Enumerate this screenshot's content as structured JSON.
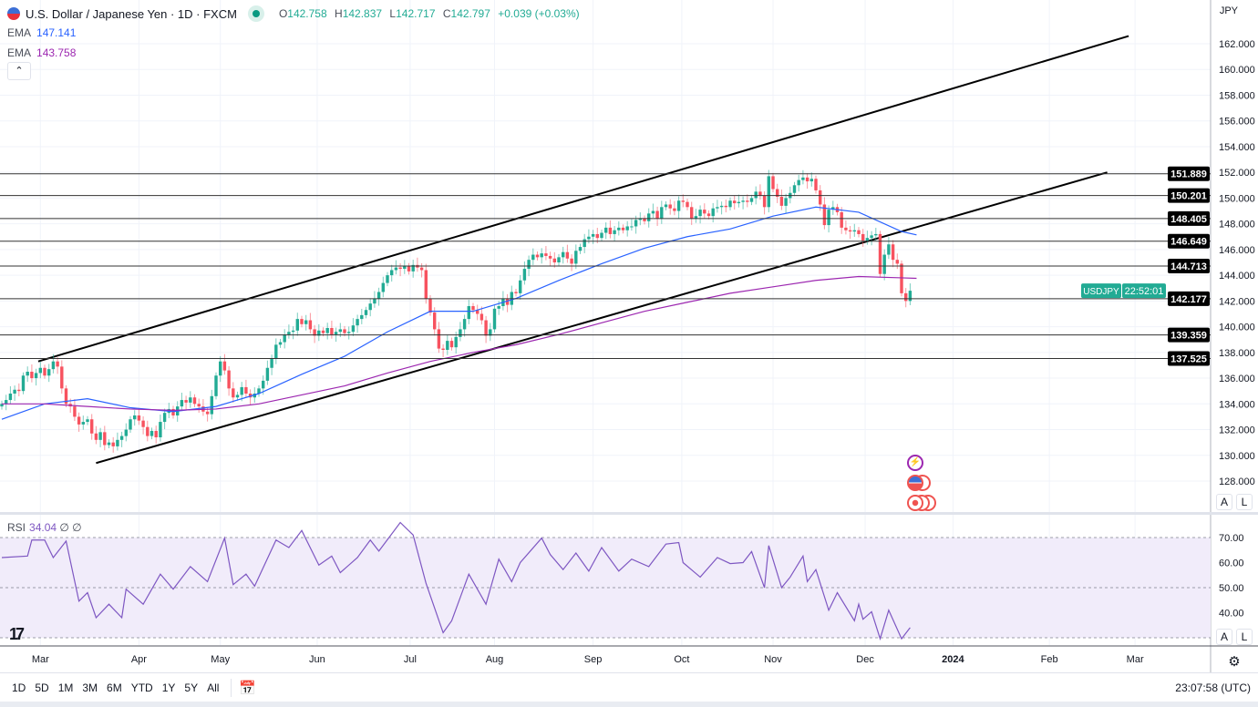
{
  "header": {
    "title": "U.S. Dollar / Japanese Yen · 1D · FXCM",
    "ohlc": {
      "o_label": "O",
      "o": "142.758",
      "h_label": "H",
      "h": "142.837",
      "l_label": "L",
      "l": "142.717",
      "c_label": "C",
      "c": "142.797",
      "change": "+0.039 (+0.03%)"
    },
    "ema1_label": "EMA",
    "ema1_value": "147.141",
    "ema2_label": "EMA",
    "ema2_value": "143.758",
    "collapse_icon": "chevron-up"
  },
  "axis": {
    "currency": "JPY",
    "symbol_tag": "USDJPY",
    "countdown": "22:52:01",
    "auto_label": "A",
    "log_label": "L"
  },
  "rsi_legend": {
    "label": "RSI",
    "value": "34.04",
    "extra": "∅ ∅"
  },
  "toolbar": {
    "ranges": [
      "1D",
      "5D",
      "1M",
      "3M",
      "6M",
      "YTD",
      "1Y",
      "5Y",
      "All"
    ],
    "calendar_icon": "calendar-icon",
    "clock": "23:07:58 (UTC)"
  },
  "colors": {
    "up": "#22ab94",
    "down": "#f7525f",
    "ema_fast": "#2962ff",
    "ema_slow": "#9c27b0",
    "rsi": "#7e57c2",
    "rsi_band": "#f1ecfa"
  },
  "chart_data": {
    "type": "candlestick",
    "symbol": "USDJPY",
    "interval": "1D",
    "ylim": [
      127,
      163.5
    ],
    "y_ticks": [
      128,
      130,
      132,
      134,
      136,
      138,
      140,
      142,
      144,
      146,
      148,
      150,
      152,
      154,
      156,
      158,
      160,
      162
    ],
    "x_ticks": [
      {
        "label": "Mar",
        "bar": 9
      },
      {
        "label": "Apr",
        "bar": 32
      },
      {
        "label": "May",
        "bar": 51
      },
      {
        "label": "Jun",
        "bar": 73.6
      },
      {
        "label": "Jul",
        "bar": 95.3
      },
      {
        "label": "Aug",
        "bar": 115
      },
      {
        "label": "Sep",
        "bar": 138
      },
      {
        "label": "Oct",
        "bar": 158.7
      },
      {
        "label": "Nov",
        "bar": 180
      },
      {
        "label": "Dec",
        "bar": 201.5
      },
      {
        "label": "2024",
        "bar": 222
      },
      {
        "label": "Feb",
        "bar": 244.5
      },
      {
        "label": "Mar",
        "bar": 264.5
      }
    ],
    "closes": [
      134.0,
      134.3,
      134.8,
      135.1,
      135.0,
      136.2,
      136.5,
      136.0,
      136.4,
      136.8,
      136.2,
      136.7,
      137.3,
      136.9,
      135.2,
      134.0,
      133.8,
      133.0,
      132.4,
      132.6,
      132.8,
      131.7,
      131.2,
      131.8,
      130.8,
      131.0,
      130.7,
      131.2,
      131.5,
      132.0,
      132.8,
      133.1,
      132.7,
      132.2,
      131.5,
      131.9,
      131.4,
      132.6,
      133.3,
      133.6,
      133.1,
      133.8,
      134.3,
      134.1,
      134.5,
      134.0,
      133.8,
      133.4,
      133.2,
      134.6,
      136.2,
      137.3,
      136.6,
      135.2,
      134.5,
      134.7,
      135.3,
      134.8,
      134.5,
      134.8,
      135.2,
      135.8,
      136.8,
      137.5,
      138.6,
      138.8,
      139.4,
      139.6,
      139.7,
      140.6,
      140.2,
      140.5,
      139.8,
      139.3,
      139.7,
      139.5,
      139.9,
      139.4,
      139.6,
      139.8,
      139.5,
      139.6,
      140.1,
      140.6,
      140.9,
      141.3,
      141.8,
      142.2,
      142.7,
      143.4,
      144.0,
      144.4,
      144.6,
      144.5,
      144.7,
      144.3,
      144.8,
      144.6,
      144.4,
      142.2,
      141.1,
      139.8,
      138.3,
      138.2,
      138.9,
      138.4,
      139.2,
      139.8,
      140.6,
      141.6,
      141.3,
      141.0,
      140.5,
      139.3,
      139.8,
      141.4,
      141.6,
      142.2,
      141.7,
      142.7,
      142.6,
      143.6,
      144.5,
      145.2,
      145.6,
      145.4,
      145.7,
      145.5,
      145.3,
      145.0,
      145.4,
      145.8,
      145.3,
      144.9,
      145.9,
      146.2,
      146.8,
      147.0,
      147.2,
      146.9,
      147.3,
      147.7,
      147.2,
      147.5,
      147.7,
      147.5,
      147.8,
      147.8,
      148.3,
      148.4,
      148.2,
      148.8,
      149.0,
      148.4,
      149.3,
      149.5,
      149.2,
      149.0,
      149.8,
      149.7,
      149.3,
      148.4,
      148.6,
      149.1,
      148.8,
      148.6,
      149.2,
      149.3,
      149.4,
      149.3,
      149.8,
      149.6,
      149.7,
      149.8,
      149.7,
      150.0,
      150.5,
      150.2,
      149.3,
      151.7,
      150.7,
      150.1,
      149.4,
      150.0,
      150.4,
      151.0,
      151.4,
      151.6,
      151.3,
      151.5,
      150.6,
      149.5,
      147.9,
      149.1,
      149.3,
      148.9,
      147.7,
      147.5,
      147.4,
      147.5,
      147.2,
      146.7,
      146.9,
      147.1,
      147.2,
      144.1,
      145.6,
      146.4,
      145.2,
      144.9,
      142.6,
      142.0,
      142.797
    ],
    "ema_fast": {
      "every_bars": 10,
      "values": [
        132.8,
        134.0,
        134.4,
        133.7,
        133.4,
        133.8,
        134.8,
        136.3,
        137.7,
        139.6,
        141.2,
        141.2,
        142.2,
        143.6,
        144.9,
        146.1,
        147.0,
        147.6,
        148.6,
        149.3,
        148.9,
        147.4,
        147.141
      ]
    },
    "ema_slow": {
      "every_bars": 10,
      "values": [
        134.0,
        134.0,
        133.8,
        133.6,
        133.5,
        133.6,
        134.0,
        134.7,
        135.4,
        136.4,
        137.3,
        138.0,
        138.6,
        139.4,
        140.3,
        141.2,
        141.9,
        142.6,
        143.1,
        143.6,
        143.9,
        143.8,
        143.758
      ]
    },
    "horizontal_levels": [
      151.889,
      150.201,
      148.405,
      146.649,
      144.713,
      142.177,
      139.359,
      137.525
    ],
    "trend_lines": [
      {
        "from": [
          8.5,
          137.3
        ],
        "to": [
          263,
          162.6
        ]
      },
      {
        "from": [
          22,
          129.4
        ],
        "to": [
          258,
          152.0
        ]
      }
    ],
    "current_price": 142.797,
    "rsi": {
      "ylim": [
        26,
        78
      ],
      "y_ticks": [
        40,
        50,
        60,
        70
      ],
      "band": [
        30,
        70
      ],
      "points": [
        [
          0,
          62
        ],
        [
          6,
          62.6
        ],
        [
          7,
          69
        ],
        [
          10,
          69
        ],
        [
          12,
          62
        ],
        [
          15,
          68.6
        ],
        [
          18,
          44.6
        ],
        [
          20,
          48
        ],
        [
          22,
          38
        ],
        [
          25,
          43.4
        ],
        [
          28,
          38
        ],
        [
          29,
          49.4
        ],
        [
          33,
          43.4
        ],
        [
          37,
          55.4
        ],
        [
          40,
          49.4
        ],
        [
          44,
          58.4
        ],
        [
          48,
          52.4
        ],
        [
          52,
          69.8
        ],
        [
          54,
          51.2
        ],
        [
          57,
          55.4
        ],
        [
          59,
          50.6
        ],
        [
          64,
          69
        ],
        [
          67,
          66
        ],
        [
          70,
          72.8
        ],
        [
          74,
          59
        ],
        [
          77,
          62.6
        ],
        [
          79,
          56
        ],
        [
          83,
          62
        ],
        [
          86,
          69
        ],
        [
          88,
          64.6
        ],
        [
          93,
          76
        ],
        [
          96,
          71
        ],
        [
          99,
          51.8
        ],
        [
          103,
          32
        ],
        [
          105,
          36.8
        ],
        [
          109,
          55.4
        ],
        [
          113,
          43.4
        ],
        [
          116,
          61.4
        ],
        [
          119,
          52.4
        ],
        [
          121,
          60
        ],
        [
          126,
          69.8
        ],
        [
          128,
          63.2
        ],
        [
          131,
          57.2
        ],
        [
          134,
          63.8
        ],
        [
          137,
          56.6
        ],
        [
          140,
          66
        ],
        [
          144,
          56.6
        ],
        [
          147,
          61.4
        ],
        [
          151,
          58.4
        ],
        [
          155,
          67.4
        ],
        [
          158,
          68
        ],
        [
          159,
          60
        ],
        [
          163,
          54.2
        ],
        [
          167,
          62
        ],
        [
          170,
          59.6
        ],
        [
          173,
          60
        ],
        [
          175,
          64.4
        ],
        [
          178,
          50
        ],
        [
          179,
          66.8
        ],
        [
          182,
          50
        ],
        [
          184,
          54.2
        ],
        [
          187,
          62.6
        ],
        [
          188,
          52.4
        ],
        [
          190,
          57.2
        ],
        [
          193,
          41
        ],
        [
          195,
          48
        ],
        [
          199,
          36.8
        ],
        [
          200,
          43.4
        ],
        [
          201,
          37.4
        ],
        [
          203,
          40.4
        ],
        [
          205,
          29.6
        ],
        [
          207,
          41
        ],
        [
          210,
          29.6
        ],
        [
          212,
          34.04
        ]
      ]
    },
    "event_icons": [
      "lightning-icon",
      "us-flag-icon",
      "us-flag-icon",
      "record-icon",
      "record-icon",
      "record-icon"
    ]
  }
}
